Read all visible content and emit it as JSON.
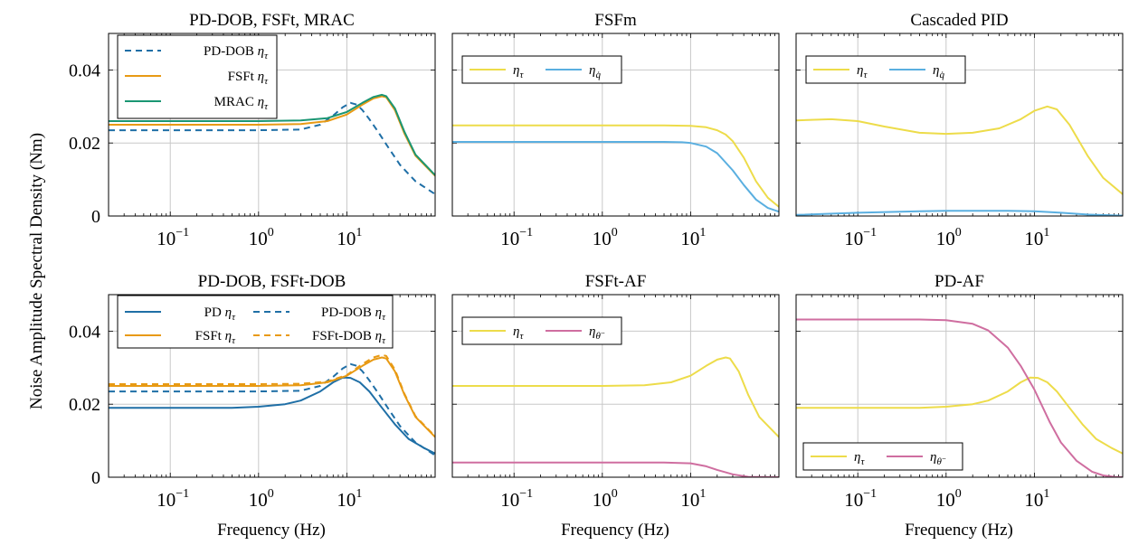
{
  "figure": {
    "ylabel": "Noise Amplitude Spectral Density (Nm)",
    "xlabel": "Frequency (Hz)"
  },
  "colors": {
    "blue": "#1f6fa6",
    "orange": "#e89a14",
    "green": "#1a9673",
    "yellow": "#eddc4a",
    "lightblue": "#5aafe0",
    "pink": "#cf6ea0",
    "grid": "#c8c8c8"
  },
  "chart_data": [
    {
      "id": "p1",
      "type": "line",
      "title": "PD-DOB, FSFt, MRAC",
      "xscale": "log",
      "xlim": [
        0.02,
        100
      ],
      "ylim": [
        0,
        0.05
      ],
      "xticks": [
        {
          "value": 0.1,
          "base": "10",
          "exp": "−1"
        },
        {
          "value": 1,
          "base": "10",
          "exp": "0"
        },
        {
          "value": 10,
          "base": "10",
          "exp": "1"
        }
      ],
      "yticks": [
        {
          "value": 0,
          "label": "0"
        },
        {
          "value": 0.02,
          "label": "0.02"
        },
        {
          "value": 0.04,
          "label": "0.04"
        }
      ],
      "grid": true,
      "legend": {
        "placement": "top-left",
        "columns": 1
      },
      "series": [
        {
          "name": "PD-DOB ητ",
          "label": "PD-DOB",
          "sym": "η",
          "sub": "τ",
          "color_key": "blue",
          "dash": true,
          "x": [
            0.02,
            1,
            3,
            5,
            7,
            9,
            11,
            13,
            15,
            18,
            22,
            30,
            40,
            60,
            100
          ],
          "y": [
            0.0235,
            0.0235,
            0.0237,
            0.025,
            0.0275,
            0.0298,
            0.031,
            0.0305,
            0.029,
            0.0265,
            0.0235,
            0.0185,
            0.014,
            0.0095,
            0.006
          ]
        },
        {
          "name": "FSFt ητ",
          "label": "FSFt",
          "sym": "η",
          "sub": "τ",
          "color_key": "orange",
          "dash": false,
          "x": [
            0.02,
            1,
            3,
            6,
            10,
            15,
            20,
            25,
            28,
            35,
            45,
            60,
            100
          ],
          "y": [
            0.025,
            0.025,
            0.0252,
            0.026,
            0.0278,
            0.0305,
            0.0322,
            0.0328,
            0.0325,
            0.029,
            0.0225,
            0.0165,
            0.011
          ]
        },
        {
          "name": "MRAC ητ",
          "label": "MRAC",
          "sym": "η",
          "sub": "τ",
          "color_key": "green",
          "dash": false,
          "x": [
            0.02,
            1,
            3,
            6,
            10,
            15,
            20,
            25,
            28,
            35,
            45,
            60,
            100
          ],
          "y": [
            0.026,
            0.026,
            0.0262,
            0.0268,
            0.0285,
            0.031,
            0.0326,
            0.0332,
            0.0328,
            0.0295,
            0.023,
            0.0168,
            0.0112
          ]
        }
      ]
    },
    {
      "id": "p2",
      "type": "line",
      "title": "FSFm",
      "xscale": "log",
      "xlim": [
        0.02,
        100
      ],
      "ylim": [
        0,
        0.05
      ],
      "xticks": [
        {
          "value": 0.1,
          "base": "10",
          "exp": "−1"
        },
        {
          "value": 1,
          "base": "10",
          "exp": "0"
        },
        {
          "value": 10,
          "base": "10",
          "exp": "1"
        }
      ],
      "yticks": [
        {
          "value": 0,
          "label": ""
        },
        {
          "value": 0.02,
          "label": ""
        },
        {
          "value": 0.04,
          "label": ""
        }
      ],
      "grid": true,
      "legend": {
        "placement": "top-left",
        "columns": 2
      },
      "series": [
        {
          "name": "ητ",
          "label": "",
          "sym": "η",
          "sub": "τ",
          "color_key": "yellow",
          "dash": false,
          "x": [
            0.02,
            1,
            5,
            10,
            15,
            20,
            25,
            30,
            40,
            55,
            75,
            100
          ],
          "y": [
            0.0248,
            0.0248,
            0.0248,
            0.0247,
            0.0243,
            0.0235,
            0.0223,
            0.0205,
            0.016,
            0.0095,
            0.005,
            0.0025
          ]
        },
        {
          "name": "ηq̇",
          "label": "",
          "sym": "η",
          "sub": "q̇",
          "color_key": "lightblue",
          "dash": false,
          "x": [
            0.02,
            1,
            5,
            8,
            10,
            15,
            20,
            30,
            40,
            55,
            75,
            100
          ],
          "y": [
            0.0203,
            0.0203,
            0.0203,
            0.0202,
            0.02,
            0.019,
            0.0172,
            0.0125,
            0.0085,
            0.0045,
            0.0022,
            0.0012
          ]
        }
      ]
    },
    {
      "id": "p3",
      "type": "line",
      "title": "Cascaded PID",
      "xscale": "log",
      "xlim": [
        0.02,
        100
      ],
      "ylim": [
        0,
        0.05
      ],
      "xticks": [
        {
          "value": 0.1,
          "base": "10",
          "exp": "−1"
        },
        {
          "value": 1,
          "base": "10",
          "exp": "0"
        },
        {
          "value": 10,
          "base": "10",
          "exp": "1"
        }
      ],
      "yticks": [
        {
          "value": 0,
          "label": ""
        },
        {
          "value": 0.02,
          "label": ""
        },
        {
          "value": 0.04,
          "label": ""
        }
      ],
      "grid": true,
      "legend": {
        "placement": "top-left",
        "columns": 2
      },
      "series": [
        {
          "name": "ητ",
          "label": "",
          "sym": "η",
          "sub": "τ",
          "color_key": "yellow",
          "dash": false,
          "x": [
            0.02,
            0.05,
            0.1,
            0.2,
            0.5,
            1,
            2,
            4,
            7,
            10,
            14,
            18,
            25,
            40,
            60,
            100
          ],
          "y": [
            0.0262,
            0.0265,
            0.026,
            0.0245,
            0.0228,
            0.0225,
            0.0228,
            0.024,
            0.0265,
            0.0288,
            0.03,
            0.0292,
            0.025,
            0.0165,
            0.0105,
            0.006
          ]
        },
        {
          "name": "ηq̇",
          "label": "",
          "sym": "η",
          "sub": "q̇",
          "color_key": "lightblue",
          "dash": false,
          "x": [
            0.02,
            0.1,
            0.5,
            1,
            5,
            10,
            20,
            40,
            100
          ],
          "y": [
            0.0003,
            0.0009,
            0.0013,
            0.0014,
            0.0014,
            0.0013,
            0.0009,
            0.0004,
            0.0001
          ]
        }
      ]
    },
    {
      "id": "p4",
      "type": "line",
      "title": "PD-DOB, FSFt-DOB",
      "xscale": "log",
      "xlim": [
        0.02,
        100
      ],
      "ylim": [
        0,
        0.05
      ],
      "xticks": [
        {
          "value": 0.1,
          "base": "10",
          "exp": "−1"
        },
        {
          "value": 1,
          "base": "10",
          "exp": "0"
        },
        {
          "value": 10,
          "base": "10",
          "exp": "1"
        }
      ],
      "yticks": [
        {
          "value": 0,
          "label": "0"
        },
        {
          "value": 0.02,
          "label": "0.02"
        },
        {
          "value": 0.04,
          "label": "0.04"
        }
      ],
      "grid": true,
      "legend": {
        "placement": "top-left",
        "columns": 2
      },
      "series": [
        {
          "name": "PD ητ",
          "label": "PD",
          "sym": "η",
          "sub": "τ",
          "color_key": "blue",
          "dash": false,
          "x": [
            0.02,
            0.5,
            1,
            2,
            3,
            5,
            7,
            9,
            11,
            14,
            18,
            25,
            35,
            50,
            75,
            100
          ],
          "y": [
            0.019,
            0.019,
            0.0193,
            0.02,
            0.021,
            0.0235,
            0.026,
            0.0273,
            0.0272,
            0.026,
            0.0235,
            0.019,
            0.0145,
            0.0105,
            0.008,
            0.0065
          ]
        },
        {
          "name": "PD-DOB ητ",
          "label": "PD-DOB",
          "sym": "η",
          "sub": "τ",
          "color_key": "blue",
          "dash": true,
          "x": [
            0.02,
            1,
            3,
            5,
            7,
            9,
            11,
            13,
            15,
            18,
            22,
            30,
            40,
            60,
            100
          ],
          "y": [
            0.0235,
            0.0235,
            0.0237,
            0.025,
            0.0275,
            0.0298,
            0.031,
            0.0305,
            0.029,
            0.0265,
            0.0235,
            0.0185,
            0.014,
            0.0095,
            0.006
          ]
        },
        {
          "name": "FSFt ητ",
          "label": "FSFt",
          "sym": "η",
          "sub": "τ",
          "color_key": "orange",
          "dash": false,
          "x": [
            0.02,
            1,
            3,
            6,
            10,
            15,
            20,
            25,
            28,
            35,
            45,
            60,
            100
          ],
          "y": [
            0.025,
            0.025,
            0.0252,
            0.026,
            0.0278,
            0.0305,
            0.0322,
            0.0328,
            0.0325,
            0.029,
            0.0225,
            0.0165,
            0.011
          ]
        },
        {
          "name": "FSFt-DOB ητ",
          "label": "FSFt-DOB",
          "sym": "η",
          "sub": "τ",
          "color_key": "orange",
          "dash": true,
          "x": [
            0.02,
            1,
            3,
            6,
            10,
            15,
            20,
            25,
            28,
            35,
            45,
            60,
            100
          ],
          "y": [
            0.0255,
            0.0255,
            0.0256,
            0.0262,
            0.028,
            0.031,
            0.0328,
            0.0335,
            0.0332,
            0.0295,
            0.0228,
            0.0167,
            0.0112
          ]
        }
      ]
    },
    {
      "id": "p5",
      "type": "line",
      "title": "FSFt-AF",
      "xscale": "log",
      "xlim": [
        0.02,
        100
      ],
      "ylim": [
        0,
        0.05
      ],
      "xticks": [
        {
          "value": 0.1,
          "base": "10",
          "exp": "−1"
        },
        {
          "value": 1,
          "base": "10",
          "exp": "0"
        },
        {
          "value": 10,
          "base": "10",
          "exp": "1"
        }
      ],
      "yticks": [
        {
          "value": 0,
          "label": ""
        },
        {
          "value": 0.02,
          "label": ""
        },
        {
          "value": 0.04,
          "label": ""
        }
      ],
      "grid": true,
      "legend": {
        "placement": "top-left",
        "columns": 2
      },
      "series": [
        {
          "name": "ητ",
          "label": "",
          "sym": "η",
          "sub": "τ",
          "color_key": "yellow",
          "dash": false,
          "x": [
            0.02,
            1,
            3,
            6,
            10,
            15,
            20,
            25,
            28,
            35,
            45,
            60,
            100
          ],
          "y": [
            0.025,
            0.025,
            0.0252,
            0.026,
            0.0278,
            0.0305,
            0.0322,
            0.0328,
            0.0325,
            0.029,
            0.0225,
            0.0165,
            0.011
          ]
        },
        {
          "name": "ηθ̈",
          "label": "",
          "sym": "η",
          "sub": "θ̈",
          "color_key": "pink",
          "dash": false,
          "x": [
            0.02,
            1,
            5,
            10,
            15,
            20,
            30,
            45,
            100
          ],
          "y": [
            0.004,
            0.004,
            0.004,
            0.0038,
            0.003,
            0.002,
            0.0008,
            0.0001,
            0
          ]
        }
      ]
    },
    {
      "id": "p6",
      "type": "line",
      "title": "PD-AF",
      "xscale": "log",
      "xlim": [
        0.02,
        100
      ],
      "ylim": [
        0,
        0.05
      ],
      "xticks": [
        {
          "value": 0.1,
          "base": "10",
          "exp": "−1"
        },
        {
          "value": 1,
          "base": "10",
          "exp": "0"
        },
        {
          "value": 10,
          "base": "10",
          "exp": "1"
        }
      ],
      "yticks": [
        {
          "value": 0,
          "label": ""
        },
        {
          "value": 0.02,
          "label": ""
        },
        {
          "value": 0.04,
          "label": ""
        }
      ],
      "grid": true,
      "legend": {
        "placement": "bottom-left",
        "columns": 2
      },
      "series": [
        {
          "name": "ητ",
          "label": "",
          "sym": "η",
          "sub": "τ",
          "color_key": "yellow",
          "dash": false,
          "x": [
            0.02,
            0.5,
            1,
            2,
            3,
            5,
            7,
            9,
            11,
            14,
            18,
            25,
            35,
            50,
            75,
            100
          ],
          "y": [
            0.019,
            0.019,
            0.0193,
            0.02,
            0.021,
            0.0235,
            0.026,
            0.0273,
            0.0272,
            0.026,
            0.0235,
            0.019,
            0.0145,
            0.0105,
            0.008,
            0.0065
          ]
        },
        {
          "name": "ηθ̈",
          "label": "",
          "sym": "η",
          "sub": "θ̈",
          "color_key": "pink",
          "dash": false,
          "x": [
            0.02,
            0.5,
            1,
            2,
            3,
            5,
            7,
            10,
            15,
            20,
            30,
            45,
            60,
            80,
            100
          ],
          "y": [
            0.0432,
            0.0432,
            0.043,
            0.042,
            0.0402,
            0.0355,
            0.0305,
            0.024,
            0.015,
            0.0095,
            0.0045,
            0.0015,
            0.0005,
            0.0001,
            0
          ]
        }
      ]
    }
  ]
}
